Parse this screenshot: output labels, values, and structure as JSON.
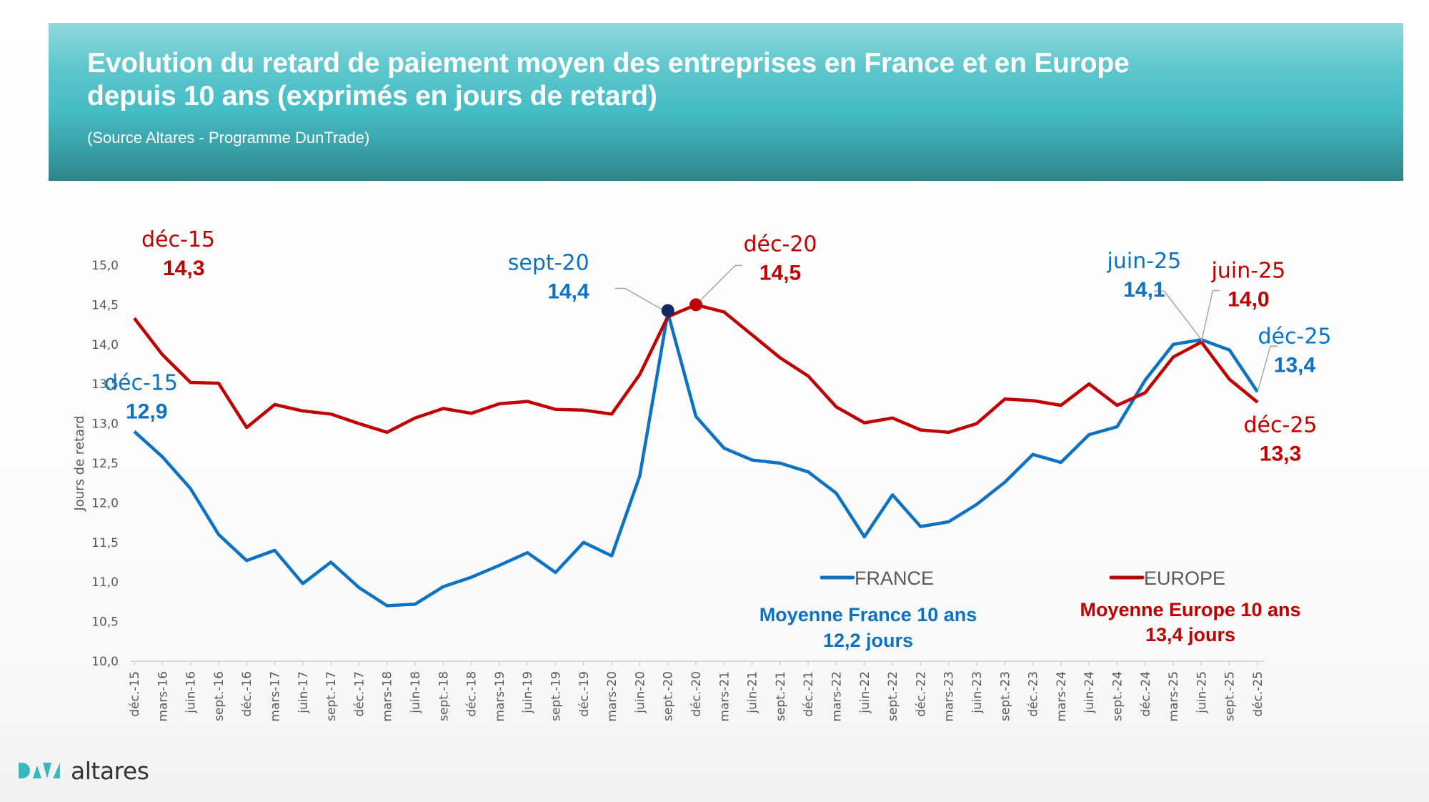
{
  "header": {
    "title_line1": "Evolution du retard de paiement moyen des entreprises en France et en Europe",
    "title_line2": "depuis 10 ans (exprimés en jours de retard)",
    "source": "(Source Altares - Programme DunTrade)"
  },
  "logo": {
    "mark": "DATA",
    "word": "altares",
    "icon": "data-logo-icon",
    "color": "#3ab7c0"
  },
  "colors": {
    "france": "#0b72c6",
    "europe": "#c00000",
    "axis": "#d9d9d9",
    "tick_text": "#595959",
    "sept20_marker": "#0f2a64"
  },
  "chart_data": {
    "type": "line",
    "title": "Evolution du retard de paiement moyen des entreprises en France et en Europe depuis 10 ans (exprimés en jours de retard)",
    "xlabel": "",
    "ylabel": "Jours de retard",
    "ylim": [
      10.0,
      15.0
    ],
    "ytick_step": 0.5,
    "yticks": [
      "10,0",
      "10,5",
      "11,0",
      "11,5",
      "12,0",
      "12,5",
      "13,0",
      "13,5",
      "14,0",
      "14,5",
      "15,0"
    ],
    "grid": false,
    "legend_position": "bottom-right",
    "categories": [
      "déc.-15",
      "mars-16",
      "juin-16",
      "sept.-16",
      "déc.-16",
      "mars-17",
      "juin-17",
      "sept.-17",
      "déc.-17",
      "mars-18",
      "juin-18",
      "sept.-18",
      "déc.-18",
      "mars-19",
      "juin-19",
      "sept.-19",
      "déc.-19",
      "mars-20",
      "juin-20",
      "sept.-20",
      "déc.-20",
      "mars-21",
      "juin-21",
      "sept.-21",
      "déc.-21",
      "mars-22",
      "juin-22",
      "sept.-22",
      "déc.-22",
      "mars-23",
      "juin-23",
      "sept.-23",
      "déc.-23",
      "mars-24",
      "juin-24",
      "sept.-24",
      "déc.-24",
      "mars-25",
      "juin-25",
      "sept.-25",
      "déc.-25"
    ],
    "series": [
      {
        "name": "FRANCE",
        "color": "#0b72c6",
        "values": [
          12.9,
          12.58,
          12.18,
          11.6,
          11.27,
          11.4,
          10.98,
          11.25,
          10.93,
          10.7,
          10.72,
          10.94,
          11.06,
          11.21,
          11.37,
          11.12,
          11.5,
          11.33,
          12.34,
          14.4,
          13.09,
          12.69,
          12.54,
          12.5,
          12.39,
          12.12,
          11.57,
          12.1,
          11.7,
          11.76,
          11.98,
          12.26,
          12.61,
          12.51,
          12.86,
          12.96,
          13.55,
          14.0,
          14.06,
          13.93,
          13.4
        ]
      },
      {
        "name": "EUROPE",
        "color": "#c00000",
        "values": [
          14.33,
          13.87,
          13.52,
          13.51,
          12.95,
          13.24,
          13.16,
          13.12,
          13.0,
          12.89,
          13.07,
          13.19,
          13.13,
          13.25,
          13.28,
          13.18,
          13.17,
          13.12,
          13.62,
          14.35,
          14.5,
          14.41,
          14.12,
          13.83,
          13.6,
          13.21,
          13.01,
          13.07,
          12.92,
          12.89,
          13.0,
          13.31,
          13.29,
          13.23,
          13.5,
          13.23,
          13.39,
          13.84,
          14.03,
          13.56,
          13.27
        ]
      }
    ],
    "annotations": [
      {
        "series": "EUROPE",
        "category": "déc.-15",
        "label": "déc-15",
        "value": "14,3"
      },
      {
        "series": "FRANCE",
        "category": "déc.-15",
        "label": "déc-15",
        "value": "12,9"
      },
      {
        "series": "FRANCE",
        "category": "sept.-20",
        "label": "sept-20",
        "value": "14,4",
        "marker": true
      },
      {
        "series": "EUROPE",
        "category": "déc.-20",
        "label": "déc-20",
        "value": "14,5",
        "marker": true
      },
      {
        "series": "FRANCE",
        "category": "juin-25",
        "label": "juin-25",
        "value": "14,1"
      },
      {
        "series": "EUROPE",
        "category": "juin-25",
        "label": "juin-25",
        "value": "14,0"
      },
      {
        "series": "FRANCE",
        "category": "déc.-25",
        "label": "déc-25",
        "value": "13,4"
      },
      {
        "series": "EUROPE",
        "category": "déc.-25",
        "label": "déc-25",
        "value": "13,3"
      }
    ],
    "legend": [
      {
        "name": "FRANCE",
        "color": "#0b72c6"
      },
      {
        "name": "EUROPE",
        "color": "#c00000"
      }
    ],
    "averages": [
      {
        "series": "FRANCE",
        "line1": "Moyenne France  10 ans",
        "line2": "12,2  jours",
        "value": 12.2
      },
      {
        "series": "EUROPE",
        "line1": "Moyenne Europe 10 ans",
        "line2": "13,4 jours",
        "value": 13.4
      }
    ]
  }
}
